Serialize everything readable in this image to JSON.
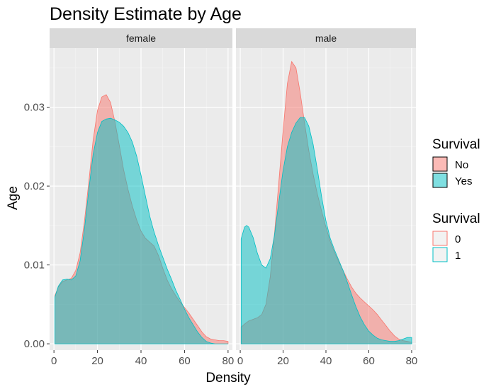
{
  "chart_data": {
    "type": "area",
    "title": "Density Estimate by Age",
    "xlabel": "Density",
    "ylabel": "Age",
    "xlim": [
      -2,
      82
    ],
    "ylim": [
      -0.0008,
      0.0375
    ],
    "x_ticks": [
      0,
      20,
      40,
      60,
      80
    ],
    "y_ticks": [
      0.0,
      0.01,
      0.02,
      0.03
    ],
    "y_tick_labels": [
      "0.00",
      "0.01",
      "0.02",
      "0.03"
    ],
    "grid": true,
    "legend_placement": "right",
    "colors": {
      "no": "#F8766D",
      "yes": "#00BFC4"
    },
    "legends": [
      {
        "title": "Survival",
        "entries": [
          {
            "label": "No",
            "style": "fill"
          },
          {
            "label": "Yes",
            "style": "fill"
          }
        ]
      },
      {
        "title": "Survival",
        "entries": [
          {
            "label": "0",
            "style": "outline"
          },
          {
            "label": "1",
            "style": "outline"
          }
        ]
      }
    ],
    "panels": [
      {
        "label": "female",
        "series": [
          {
            "name": "No",
            "points": [
              [
                0.4,
                0.0061
              ],
              [
                2,
                0.0072
              ],
              [
                4,
                0.0079
              ],
              [
                6,
                0.0081
              ],
              [
                8,
                0.0083
              ],
              [
                10,
                0.0093
              ],
              [
                12,
                0.0115
              ],
              [
                14,
                0.0155
              ],
              [
                16,
                0.0205
              ],
              [
                18,
                0.0258
              ],
              [
                20,
                0.0296
              ],
              [
                22,
                0.0313
              ],
              [
                24,
                0.0316
              ],
              [
                26,
                0.0306
              ],
              [
                28,
                0.0282
              ],
              [
                30,
                0.0252
              ],
              [
                32,
                0.0221
              ],
              [
                34,
                0.0196
              ],
              [
                36,
                0.0175
              ],
              [
                38,
                0.0157
              ],
              [
                40,
                0.0143
              ],
              [
                42,
                0.0134
              ],
              [
                44,
                0.0129
              ],
              [
                46,
                0.0124
              ],
              [
                48,
                0.0112
              ],
              [
                50,
                0.0096
              ],
              [
                52,
                0.0081
              ],
              [
                54,
                0.007
              ],
              [
                56,
                0.0061
              ],
              [
                58,
                0.0053
              ],
              [
                60,
                0.0046
              ],
              [
                62,
                0.0039
              ],
              [
                64,
                0.0031
              ],
              [
                66,
                0.0023
              ],
              [
                68,
                0.0015
              ],
              [
                70,
                0.0009
              ],
              [
                72,
                0.0006
              ],
              [
                74,
                0.0005
              ],
              [
                76,
                0.0004
              ],
              [
                78,
                0.0004
              ],
              [
                80,
                0.0003
              ]
            ]
          },
          {
            "name": "Yes",
            "points": [
              [
                0.4,
                0.0059
              ],
              [
                2,
                0.0073
              ],
              [
                4,
                0.0081
              ],
              [
                6,
                0.0082
              ],
              [
                8,
                0.0081
              ],
              [
                10,
                0.0086
              ],
              [
                12,
                0.0105
              ],
              [
                14,
                0.0145
              ],
              [
                16,
                0.0195
              ],
              [
                18,
                0.024
              ],
              [
                20,
                0.0268
              ],
              [
                22,
                0.0282
              ],
              [
                24,
                0.0285
              ],
              [
                26,
                0.0286
              ],
              [
                28,
                0.0284
              ],
              [
                30,
                0.0281
              ],
              [
                32,
                0.0276
              ],
              [
                34,
                0.0268
              ],
              [
                36,
                0.0256
              ],
              [
                38,
                0.0238
              ],
              [
                40,
                0.0214
              ],
              [
                42,
                0.0188
              ],
              [
                44,
                0.0162
              ],
              [
                46,
                0.0142
              ],
              [
                48,
                0.0125
              ],
              [
                50,
                0.011
              ],
              [
                52,
                0.0095
              ],
              [
                54,
                0.0082
              ],
              [
                56,
                0.0068
              ],
              [
                58,
                0.0056
              ],
              [
                60,
                0.0044
              ],
              [
                62,
                0.0033
              ],
              [
                64,
                0.0024
              ],
              [
                66,
                0.0015
              ],
              [
                68,
                0.0008
              ],
              [
                70,
                0.0003
              ],
              [
                72,
                0.0001
              ],
              [
                74,
                0.0
              ],
              [
                76,
                0.0
              ],
              [
                78,
                0.0
              ],
              [
                80,
                0.0
              ]
            ]
          }
        ]
      },
      {
        "label": "male",
        "series": [
          {
            "name": "No",
            "points": [
              [
                0.4,
                0.0021
              ],
              [
                2,
                0.0025
              ],
              [
                4,
                0.0029
              ],
              [
                6,
                0.0031
              ],
              [
                8,
                0.0033
              ],
              [
                10,
                0.0037
              ],
              [
                12,
                0.005
              ],
              [
                14,
                0.0085
              ],
              [
                16,
                0.014
              ],
              [
                18,
                0.0205
              ],
              [
                20,
                0.027
              ],
              [
                22,
                0.033
              ],
              [
                24,
                0.0358
              ],
              [
                26,
                0.035
              ],
              [
                28,
                0.0318
              ],
              [
                30,
                0.028
              ],
              [
                32,
                0.0245
              ],
              [
                34,
                0.0215
              ],
              [
                36,
                0.019
              ],
              [
                38,
                0.0168
              ],
              [
                40,
                0.0148
              ],
              [
                42,
                0.013
              ],
              [
                44,
                0.0116
              ],
              [
                46,
                0.0104
              ],
              [
                48,
                0.0093
              ],
              [
                50,
                0.0082
              ],
              [
                52,
                0.0072
              ],
              [
                54,
                0.0064
              ],
              [
                56,
                0.0058
              ],
              [
                58,
                0.0053
              ],
              [
                60,
                0.0048
              ],
              [
                62,
                0.0043
              ],
              [
                64,
                0.0037
              ],
              [
                66,
                0.003
              ],
              [
                68,
                0.0023
              ],
              [
                70,
                0.0016
              ],
              [
                72,
                0.001
              ],
              [
                74,
                0.0006
              ],
              [
                76,
                0.0004
              ],
              [
                78,
                0.0003
              ],
              [
                80,
                0.0002
              ]
            ]
          },
          {
            "name": "Yes",
            "points": [
              [
                0.4,
                0.0133
              ],
              [
                2,
                0.0148
              ],
              [
                3,
                0.015
              ],
              [
                4,
                0.0148
              ],
              [
                6,
                0.0135
              ],
              [
                8,
                0.0115
              ],
              [
                10,
                0.01
              ],
              [
                12,
                0.0096
              ],
              [
                14,
                0.0108
              ],
              [
                16,
                0.0138
              ],
              [
                18,
                0.018
              ],
              [
                20,
                0.022
              ],
              [
                22,
                0.025
              ],
              [
                24,
                0.0268
              ],
              [
                26,
                0.028
              ],
              [
                28,
                0.0287
              ],
              [
                30,
                0.0287
              ],
              [
                32,
                0.0276
              ],
              [
                34,
                0.0253
              ],
              [
                36,
                0.0221
              ],
              [
                38,
                0.0186
              ],
              [
                40,
                0.0156
              ],
              [
                42,
                0.0134
              ],
              [
                44,
                0.0119
              ],
              [
                46,
                0.0106
              ],
              [
                48,
                0.0093
              ],
              [
                50,
                0.0078
              ],
              [
                52,
                0.0062
              ],
              [
                54,
                0.0047
              ],
              [
                56,
                0.0034
              ],
              [
                58,
                0.0024
              ],
              [
                60,
                0.0016
              ],
              [
                62,
                0.0011
              ],
              [
                64,
                0.0007
              ],
              [
                66,
                0.0005
              ],
              [
                68,
                0.0004
              ],
              [
                70,
                0.0003
              ],
              [
                72,
                0.0003
              ],
              [
                74,
                0.0004
              ],
              [
                76,
                0.0006
              ],
              [
                78,
                0.0008
              ],
              [
                80,
                0.0008
              ]
            ]
          }
        ]
      }
    ]
  }
}
